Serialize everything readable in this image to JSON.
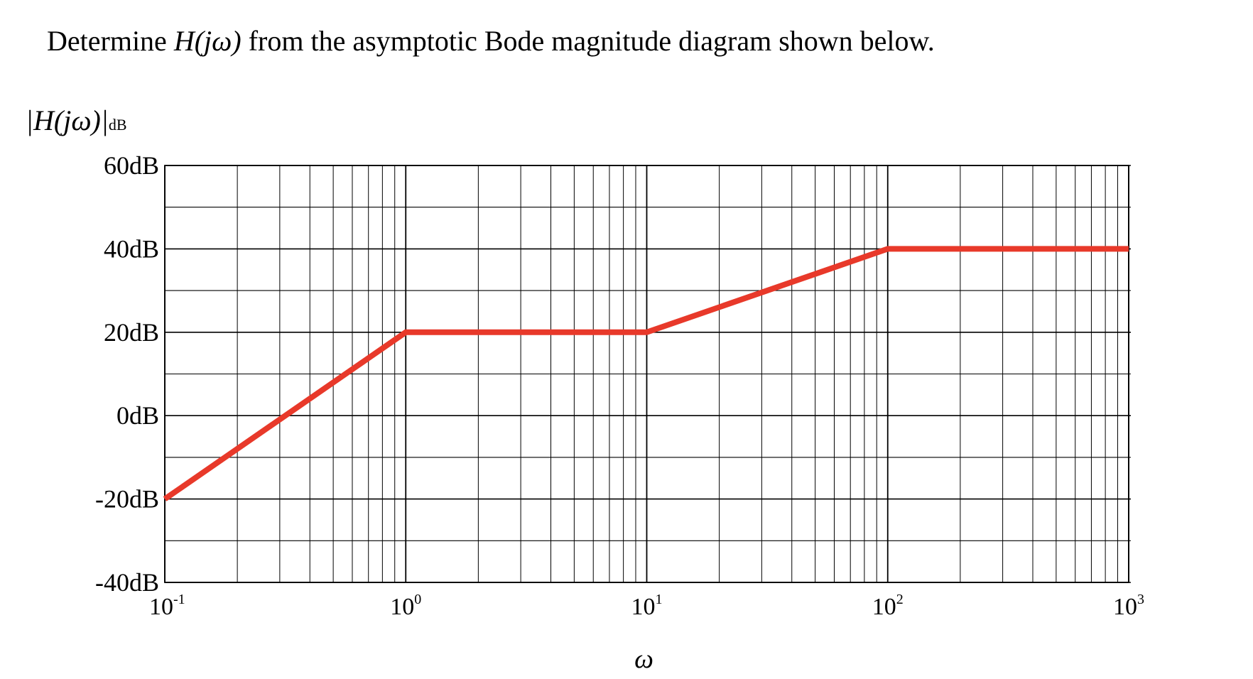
{
  "question": {
    "prefix": "Determine",
    "math": "H(jω)",
    "suffix": "from the asymptotic Bode magnitude diagram shown below."
  },
  "y_axis_label": {
    "main": "|H(jω)|",
    "sub": "dB"
  },
  "chart_data": {
    "type": "line",
    "x_scale": "log",
    "xlabel": "ω",
    "xlim": [
      0.1,
      1000
    ],
    "ylim": [
      -40,
      60
    ],
    "grid": true,
    "y_ticks": [
      {
        "value": 60,
        "label": "60dB"
      },
      {
        "value": 40,
        "label": "40dB"
      },
      {
        "value": 20,
        "label": "20dB"
      },
      {
        "value": 0,
        "label": "0dB"
      },
      {
        "value": -20,
        "label": "-20dB"
      },
      {
        "value": -40,
        "label": "-40dB"
      }
    ],
    "x_ticks": [
      {
        "value": 0.1,
        "base": "10",
        "exp": "-1"
      },
      {
        "value": 1,
        "base": "10",
        "exp": "0"
      },
      {
        "value": 10,
        "base": "10",
        "exp": "1"
      },
      {
        "value": 100,
        "base": "10",
        "exp": "2"
      },
      {
        "value": 1000,
        "base": "10",
        "exp": "3"
      }
    ],
    "series": [
      {
        "color": "#e8392a",
        "points": [
          {
            "x": 0.1,
            "y": -20
          },
          {
            "x": 1,
            "y": 20
          },
          {
            "x": 10,
            "y": 20
          },
          {
            "x": 100,
            "y": 40
          },
          {
            "x": 1000,
            "y": 40
          }
        ]
      }
    ]
  }
}
